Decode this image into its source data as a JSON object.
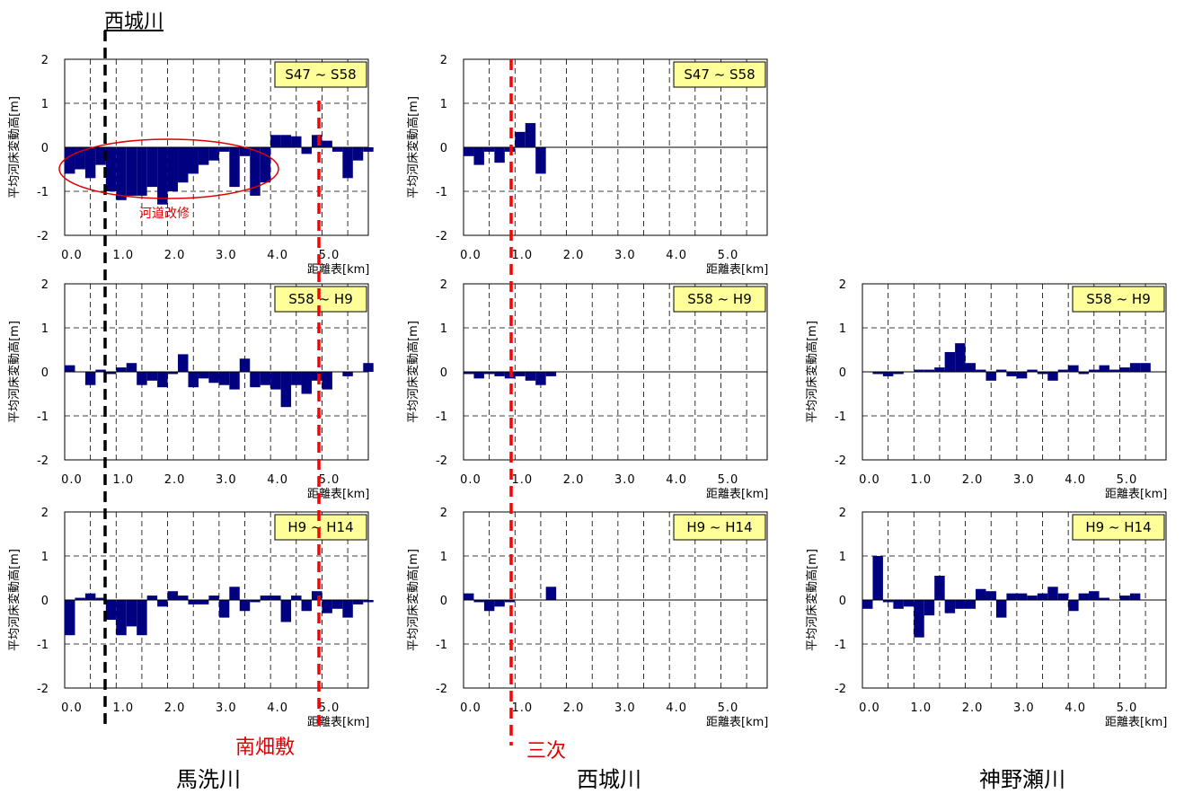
{
  "labels": {
    "top_river": "西城川",
    "site_left": "南畑敷",
    "site_mid": "三次",
    "river_left": "馬洗川",
    "river_mid": "西城川",
    "river_right": "神野瀬川",
    "annotation": "河道改修"
  },
  "colors": {
    "bar": "#000080",
    "black_dash": "#000000",
    "red_dash": "#ff0000",
    "legend_bg": "#ffff99"
  },
  "chart_data": [
    {
      "id": "c11",
      "type": "bar",
      "period": "S47 ~ S58",
      "ylabel": "平均河床変動高[m]",
      "xlabel": "距離表[km]",
      "xlim": [
        0,
        5.9
      ],
      "ylim": [
        -2,
        2
      ],
      "xticks": [
        "0.0",
        "1.0",
        "2.0",
        "3.0",
        "4.0",
        "5.0"
      ],
      "yticks": [
        "2",
        "1",
        "0",
        "-1",
        "-2"
      ],
      "values": [
        -0.6,
        -0.5,
        -0.7,
        -0.4,
        -1.0,
        -1.2,
        -1.1,
        -1.1,
        -0.9,
        -1.3,
        -1.0,
        -0.8,
        -0.6,
        -0.4,
        -0.3,
        -0.1,
        -0.9,
        -0.2,
        -1.1,
        -0.8,
        0.28,
        0.28,
        0.25,
        -0.15,
        0.28,
        0.15,
        -0.1,
        -0.7,
        -0.3,
        -0.1
      ]
    },
    {
      "id": "c12",
      "type": "bar",
      "period": "S47 ~ S58",
      "ylabel": "平均河床変動高[m]",
      "xlabel": "距離表[km]",
      "xlim": [
        0,
        5.9
      ],
      "ylim": [
        -2,
        2
      ],
      "xticks": [
        "0.0",
        "1.0",
        "2.0",
        "3.0",
        "4.0",
        "5.0"
      ],
      "yticks": [
        "2",
        "1",
        "0",
        "-1",
        "-2"
      ],
      "values": [
        -0.2,
        -0.4,
        -0.1,
        -0.35,
        -0.1,
        0.35,
        0.55,
        -0.6
      ]
    },
    {
      "id": "c21",
      "type": "bar",
      "period": "S58 ~ H9",
      "ylabel": "平均河床変動高[m]",
      "xlabel": "距離表[km]",
      "xlim": [
        0,
        5.9
      ],
      "ylim": [
        -2,
        2
      ],
      "xticks": [
        "0.0",
        "1.0",
        "2.0",
        "3.0",
        "4.0",
        "5.0"
      ],
      "yticks": [
        "2",
        "1",
        "0",
        "-1",
        "-2"
      ],
      "values": [
        0.15,
        0.0,
        -0.3,
        0.05,
        -0.05,
        0.1,
        0.2,
        -0.3,
        -0.2,
        -0.35,
        -0.05,
        0.4,
        -0.35,
        -0.15,
        -0.25,
        -0.3,
        -0.4,
        0.3,
        -0.35,
        -0.3,
        -0.4,
        -0.8,
        -0.3,
        -0.5,
        -0.2,
        -0.4,
        0.0,
        -0.1,
        0.0,
        0.2
      ]
    },
    {
      "id": "c22",
      "type": "bar",
      "period": "S58 ~ H9",
      "ylabel": "平均河床変動高[m]",
      "xlabel": "距離表[km]",
      "xlim": [
        0,
        5.9
      ],
      "ylim": [
        -2,
        2
      ],
      "xticks": [
        "0.0",
        "1.0",
        "2.0",
        "3.0",
        "4.0",
        "5.0"
      ],
      "yticks": [
        "2",
        "1",
        "0",
        "-1",
        "-2"
      ],
      "values": [
        -0.05,
        -0.15,
        -0.05,
        -0.1,
        -0.15,
        -0.1,
        -0.2,
        -0.3,
        -0.1
      ]
    },
    {
      "id": "c23",
      "type": "bar",
      "period": "S58 ~ H9",
      "ylabel": "平均河床変動高[m]",
      "xlabel": "距離表[km]",
      "xlim": [
        0,
        5.9
      ],
      "ylim": [
        -2,
        2
      ],
      "xticks": [
        "0.0",
        "1.0",
        "2.0",
        "3.0",
        "4.0",
        "5.0"
      ],
      "yticks": [
        "2",
        "1",
        "0",
        "-1",
        "-2"
      ],
      "values": [
        0.0,
        -0.05,
        -0.1,
        -0.05,
        0.0,
        0.05,
        0.05,
        0.1,
        0.45,
        0.65,
        0.2,
        0.05,
        -0.2,
        0.05,
        -0.1,
        -0.15,
        0.05,
        -0.05,
        -0.2,
        0.05,
        0.15,
        -0.05,
        0.05,
        0.15,
        0.05,
        0.1,
        0.2,
        0.2
      ]
    },
    {
      "id": "c31",
      "type": "bar",
      "period": "H9 ~ H14",
      "ylabel": "平均河床変動高[m]",
      "xlabel": "距離表[km]",
      "xlim": [
        0,
        5.9
      ],
      "ylim": [
        -2,
        2
      ],
      "xticks": [
        "0.0",
        "1.0",
        "2.0",
        "3.0",
        "4.0",
        "5.0"
      ],
      "yticks": [
        "2",
        "1",
        "0",
        "-1",
        "-2"
      ],
      "values": [
        -0.8,
        0.05,
        0.15,
        0.05,
        -0.45,
        -0.8,
        -0.6,
        -0.8,
        0.1,
        -0.15,
        0.2,
        0.1,
        -0.1,
        -0.1,
        0.1,
        -0.4,
        0.3,
        -0.25,
        -0.05,
        0.1,
        0.1,
        -0.5,
        0.1,
        -0.25,
        0.2,
        -0.3,
        -0.2,
        -0.4,
        -0.1,
        -0.05
      ]
    },
    {
      "id": "c32",
      "type": "bar",
      "period": "H9 ~ H14",
      "ylabel": "平均河床変動高[m]",
      "xlabel": "距離表[km]",
      "xlim": [
        0,
        5.9
      ],
      "ylim": [
        -2,
        2
      ],
      "xticks": [
        "0.0",
        "1.0",
        "2.0",
        "3.0",
        "4.0",
        "5.0"
      ],
      "yticks": [
        "2",
        "1",
        "0",
        "-1",
        "-2"
      ],
      "values": [
        0.15,
        -0.05,
        -0.25,
        -0.15,
        -0.05,
        0.0,
        0.0,
        0.0,
        0.3
      ]
    },
    {
      "id": "c33",
      "type": "bar",
      "period": "H9 ~ H14",
      "ylabel": "平均河床変動高[m]",
      "xlabel": "距離表[km]",
      "xlim": [
        0,
        5.9
      ],
      "ylim": [
        -2,
        2
      ],
      "xticks": [
        "0.0",
        "1.0",
        "2.0",
        "3.0",
        "4.0",
        "5.0"
      ],
      "yticks": [
        "2",
        "1",
        "0",
        "-1",
        "-2"
      ],
      "values": [
        -0.2,
        1.0,
        -0.05,
        -0.2,
        -0.15,
        -0.85,
        -0.35,
        0.55,
        -0.3,
        -0.2,
        -0.2,
        0.25,
        0.2,
        -0.4,
        0.15,
        0.15,
        0.1,
        0.15,
        0.3,
        0.15,
        -0.25,
        0.15,
        0.2,
        0.05,
        0.0,
        0.1,
        0.15,
        0.0
      ]
    }
  ]
}
